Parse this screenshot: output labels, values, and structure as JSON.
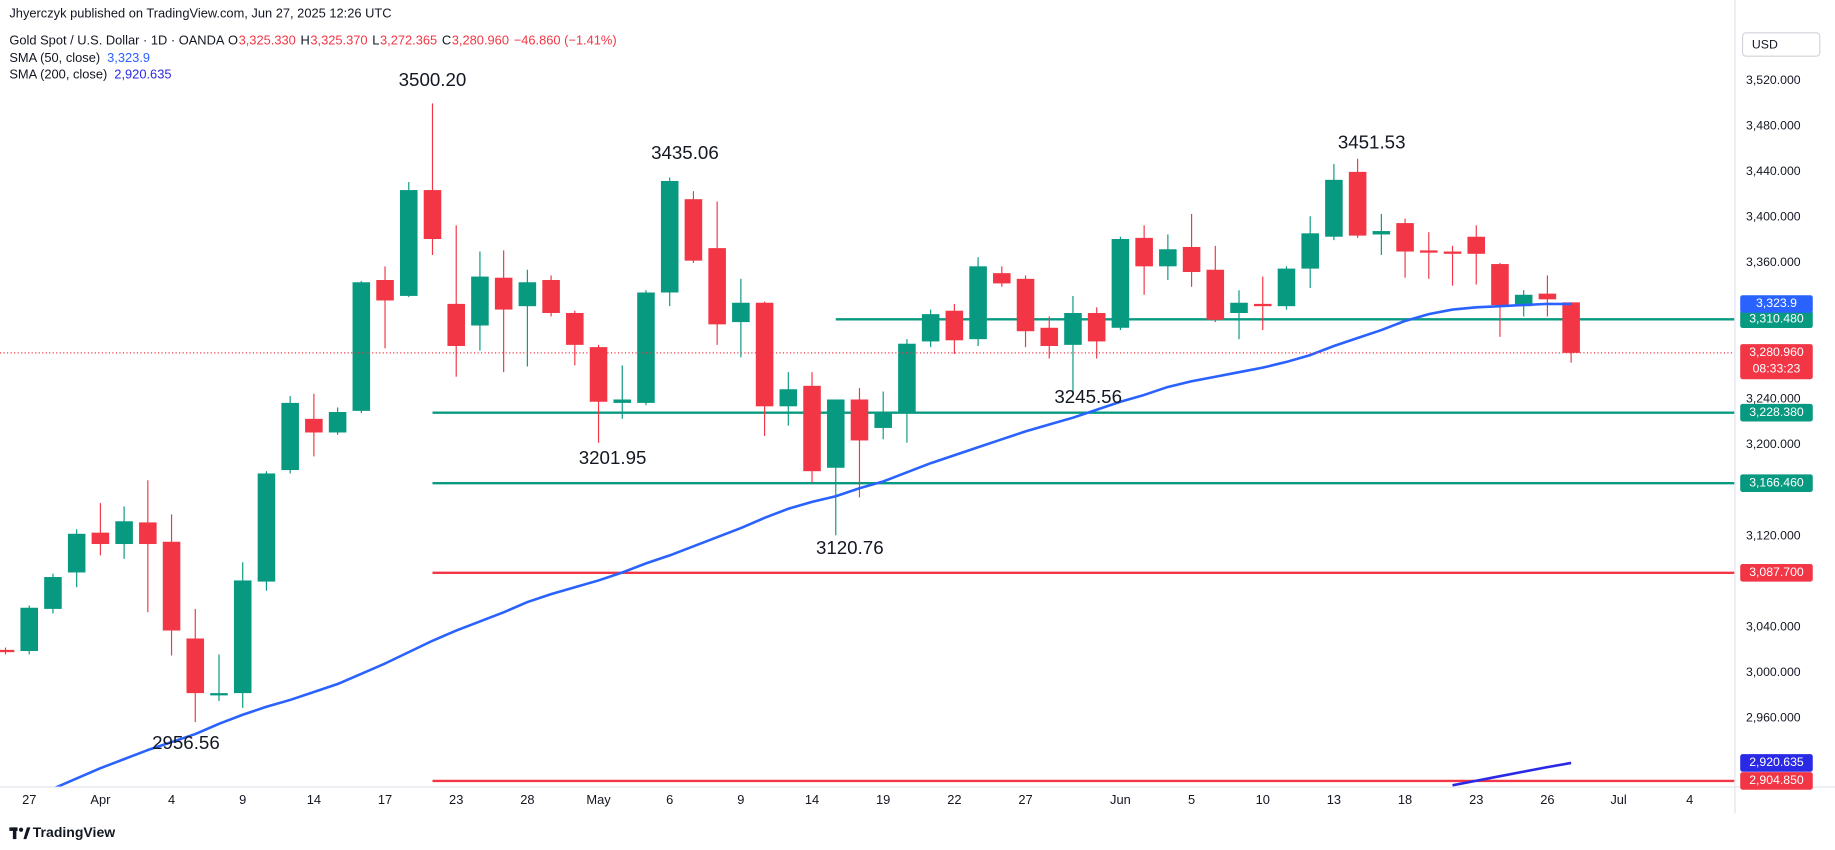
{
  "header": {
    "publisher": "Jhyerczyk published on TradingView.com, Jun 27, 2025 12:26 UTC",
    "symbol": "Gold Spot / U.S. Dollar · 1D · OANDA",
    "ohlc": [
      {
        "key": "O",
        "value": "3,325.330"
      },
      {
        "key": "H",
        "value": "3,325.370"
      },
      {
        "key": "L",
        "value": "3,272.365"
      },
      {
        "key": "C",
        "value": "3,280.960"
      }
    ],
    "change": "−46.860 (−1.41%)"
  },
  "chart_data": {
    "type": "candlestick",
    "currency": "USD",
    "categories": [
      null,
      "27",
      null,
      null,
      "Apr",
      null,
      null,
      "4",
      null,
      null,
      "9",
      null,
      null,
      "14",
      null,
      null,
      "17",
      null,
      null,
      "23",
      null,
      null,
      "28",
      null,
      null,
      "May",
      null,
      null,
      "6",
      null,
      null,
      "9",
      null,
      null,
      "14",
      null,
      null,
      "19",
      null,
      null,
      "22",
      null,
      null,
      "27",
      null,
      null,
      null,
      "Jun",
      null,
      null,
      "5",
      null,
      null,
      "10",
      null,
      null,
      "13",
      null,
      null,
      "18",
      null,
      null,
      "23",
      null,
      null,
      "26",
      null,
      null,
      "Jul",
      null,
      null,
      "4"
    ],
    "open": [
      3020,
      3019,
      3056,
      3088,
      3123,
      3113,
      3132,
      3115,
      3030,
      2980,
      2982,
      3080,
      3178,
      3223,
      3211,
      3230,
      3345,
      3331,
      3424,
      3324,
      3305,
      3347,
      3322,
      3345,
      3316,
      3286,
      3237,
      3237,
      3334,
      3416,
      3373,
      3308,
      3325,
      3234,
      3252,
      3180,
      3240,
      3215,
      3229,
      3291,
      3318,
      3293,
      3351,
      3346,
      3303,
      3288,
      3316,
      3303,
      3382,
      3357,
      3374,
      3354,
      3316,
      3324,
      3322,
      3355,
      3383,
      3440,
      3385,
      3395,
      3371,
      3370,
      3383,
      3359,
      3322,
      3333,
      3325.33,
      null,
      null,
      null,
      null,
      null
    ],
    "high": [
      3022,
      3059,
      3087,
      3126,
      3149,
      3146,
      3169,
      3139,
      3056,
      3016,
      3097,
      3177,
      3243,
      3245,
      3233,
      3344,
      3357,
      3431,
      3500.2,
      3393,
      3370,
      3371,
      3354,
      3349,
      3318,
      3288,
      3270,
      3336,
      3435.06,
      3423,
      3414,
      3346,
      3326,
      3264,
      3264,
      3240,
      3250,
      3247,
      3293,
      3319,
      3324,
      3365,
      3357,
      3349,
      3313,
      3331,
      3321,
      3383,
      3393,
      3385,
      3403,
      3375,
      3336,
      3348,
      3357,
      3401,
      3447,
      3451.53,
      3403,
      3399,
      3387,
      3375,
      3393,
      3360,
      3336,
      3349,
      3325.37,
      null,
      null,
      null,
      null,
      null
    ],
    "low": [
      3016,
      3016,
      3052,
      3075,
      3103,
      3100,
      3053,
      3015,
      2956.56,
      2975,
      2969,
      3072,
      3175,
      3190,
      3209,
      3228,
      3285,
      3330,
      3367,
      3260,
      3283,
      3264,
      3269,
      3313,
      3270,
      3201.95,
      3223,
      3235,
      3322,
      3360,
      3288,
      3277,
      3208,
      3217,
      3167,
      3120.76,
      3154,
      3205,
      3202,
      3286,
      3280,
      3287,
      3339,
      3286,
      3276,
      3245.56,
      3276,
      3301,
      3332,
      3345,
      3339,
      3308,
      3293,
      3301,
      3319,
      3338,
      3380,
      3382,
      3367,
      3347,
      3346,
      3340,
      3341,
      3295,
      3313,
      3313,
      3272.365,
      null,
      null,
      null,
      null,
      null
    ],
    "close": [
      3018,
      3057,
      3084,
      3122,
      3113,
      3133,
      3113,
      3037,
      2982,
      2982,
      3081,
      3175,
      3237,
      3211,
      3229,
      3343,
      3327,
      3424,
      3381,
      3287,
      3348,
      3319,
      3343,
      3316,
      3288,
      3238,
      3240,
      3334,
      3432,
      3362,
      3306,
      3325,
      3234,
      3249,
      3177,
      3240,
      3204,
      3229,
      3289,
      3315,
      3292,
      3357,
      3342,
      3300,
      3287,
      3316,
      3291,
      3381,
      3357,
      3372,
      3352,
      3310,
      3325,
      3322,
      3355,
      3386,
      3433,
      3384,
      3388,
      3370,
      3369,
      3368,
      3368,
      3323,
      3332,
      3328,
      3280.96,
      null,
      null,
      null,
      null,
      null
    ],
    "up_color": "#089981",
    "down_color": "#f23645",
    "series": [
      {
        "name": "SMA (50, close)",
        "color": "#2962ff",
        "value_label": "3,323.9",
        "values": [
          null,
          null,
          2898,
          2907,
          2916,
          2924,
          2932,
          2939,
          2946,
          2955,
          2963,
          2970,
          2976,
          2983,
          2990,
          2999,
          3008,
          3018,
          3028,
          3037,
          3045,
          3053,
          3062,
          3069,
          3075,
          3081,
          3088,
          3096,
          3103,
          3111,
          3119,
          3127,
          3136,
          3144,
          3150,
          3155,
          3162,
          3168,
          3176,
          3184,
          3191,
          3198,
          3205,
          3212,
          3218,
          3224,
          3231,
          3238,
          3244,
          3251,
          3256,
          3260,
          3264,
          3268,
          3273,
          3279,
          3287,
          3294,
          3301,
          3309,
          3315,
          3319,
          3321,
          3322,
          3323,
          3324,
          3323.9,
          null,
          null,
          null,
          null,
          null
        ]
      },
      {
        "name": "SMA (200, close)",
        "color": "#2a2ae6",
        "value_label": "2,920.635",
        "values": [
          null,
          null,
          null,
          null,
          null,
          null,
          null,
          null,
          null,
          null,
          null,
          null,
          null,
          null,
          null,
          null,
          null,
          null,
          null,
          null,
          null,
          null,
          null,
          null,
          null,
          null,
          null,
          null,
          null,
          null,
          null,
          null,
          null,
          null,
          null,
          null,
          null,
          null,
          null,
          null,
          null,
          null,
          null,
          null,
          null,
          null,
          null,
          null,
          null,
          null,
          null,
          null,
          null,
          null,
          null,
          null,
          null,
          null,
          null,
          null,
          null,
          2901,
          2905,
          2909,
          2913,
          2917,
          2920.635,
          null,
          null,
          null,
          null,
          null
        ]
      }
    ],
    "last_price": {
      "label": "3,280.960",
      "countdown": "08:33:23"
    },
    "levels": [
      {
        "value": 3310.48,
        "label": "3,310.480",
        "color": "#089981"
      },
      {
        "value": 3228.38,
        "label": "3,228.380",
        "color": "#089981"
      },
      {
        "value": 3166.46,
        "label": "3,166.460",
        "color": "#089981"
      },
      {
        "value": 3087.7,
        "label": "3,087.700",
        "color": "#f23645"
      },
      {
        "value": 2904.85,
        "label": "2,904.850",
        "color": "#f23645"
      }
    ],
    "annotations": [
      "3500.20",
      "3435.06",
      "3451.53",
      "3201.95",
      "3120.76",
      "3245.56",
      "2956.56"
    ],
    "ylim": [
      2900,
      3591
    ],
    "yticks": [
      {
        "value": 2960,
        "label": "2,960.000"
      },
      {
        "value": 3000,
        "label": "3,000.000"
      },
      {
        "value": 3040,
        "label": "3,040.000"
      },
      {
        "value": 3120,
        "label": "3,120.000"
      },
      {
        "value": 3200,
        "label": "3,200.000"
      },
      {
        "value": 3240,
        "label": "3,240.000"
      },
      {
        "value": 3360,
        "label": "3,360.000"
      },
      {
        "value": 3400,
        "label": "3,400.000"
      },
      {
        "value": 3440,
        "label": "3,440.000"
      },
      {
        "value": 3480,
        "label": "3,480.000"
      },
      {
        "value": 3520,
        "label": "3,520.000"
      }
    ],
    "grid": false
  },
  "footer": {
    "brand": "TradingView"
  }
}
